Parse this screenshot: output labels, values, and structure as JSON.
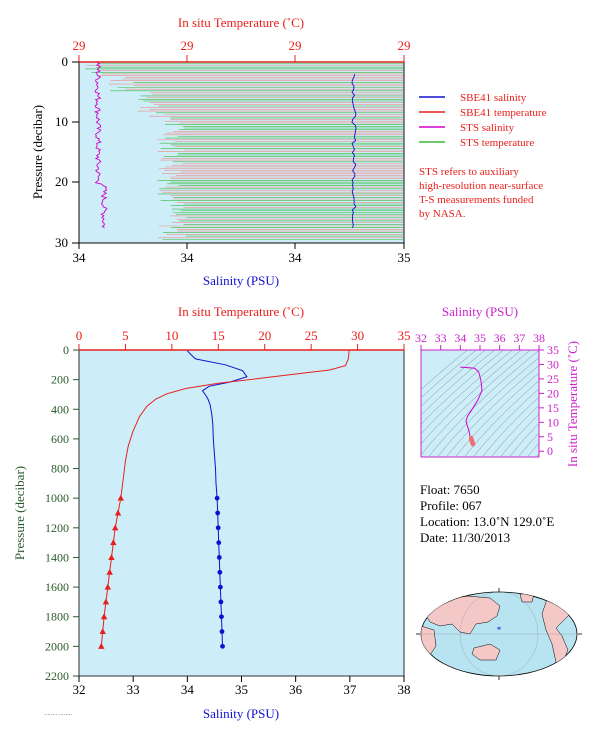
{
  "colors": {
    "plot_bg": "#cdeef8",
    "temperature": "#e8201c",
    "salinity": "#1010d0",
    "sts_salinity": "#d000d0",
    "sts_temperature": "#3cb83c",
    "inset_axis": "#cc22cc",
    "pressure_axis": "#2a5a2a"
  },
  "top_chart": {
    "top_axis_title": "In situ Temperature (˚C)",
    "top_ticks": [
      "29",
      "29",
      "29",
      "29"
    ],
    "left_axis_title": "Pressure (decibar)",
    "left_ticks": [
      "0",
      "10",
      "20",
      "30"
    ],
    "bottom_axis_title": "Salinity (PSU)",
    "bottom_ticks": [
      "34",
      "34",
      "34",
      "35"
    ],
    "legend": [
      {
        "label": "SBE41 salinity",
        "color": "#1010d0"
      },
      {
        "label": "SBE41 temperature",
        "color": "#e8201c"
      },
      {
        "label": "STS salinity",
        "color": "#d000d0"
      },
      {
        "label": "STS temperature",
        "color": "#3cb83c"
      }
    ],
    "note_lines": [
      "STS refers to auxiliary",
      "high-resolution near-surface",
      "T-S measurements funded",
      "by NASA."
    ]
  },
  "main_chart": {
    "top_axis_title": "In situ Temperature (˚C)",
    "top_ticks": [
      "0",
      "5",
      "10",
      "15",
      "20",
      "25",
      "30",
      "35"
    ],
    "left_axis_title": "Pressure (decibar)",
    "left_ticks": [
      "0",
      "200",
      "400",
      "600",
      "800",
      "1000",
      "1200",
      "1400",
      "1600",
      "1800",
      "2000",
      "2200"
    ],
    "bottom_axis_title": "Salinity (PSU)",
    "bottom_ticks": [
      "32",
      "33",
      "34",
      "35",
      "36",
      "37",
      "38"
    ]
  },
  "inset_chart": {
    "top_axis_title": "Salinity (PSU)",
    "top_ticks": [
      "32",
      "33",
      "34",
      "35",
      "36",
      "37",
      "38"
    ],
    "right_axis_title": "In situ Temperature (˚C)",
    "right_ticks": [
      "0",
      "5",
      "10",
      "15",
      "20",
      "25",
      "30",
      "35"
    ]
  },
  "float_info": {
    "float": "Float:  7650",
    "profile": "Profile:  067",
    "location": "Location:  13.0˚N  129.0˚E",
    "date": "Date:  11/30/2013"
  },
  "chart_data": [
    {
      "type": "line",
      "title": "",
      "xlabel": "Salinity (PSU)",
      "ylabel": "Pressure (decibar)",
      "x2label": "In situ Temperature (˚C)",
      "xlim": [
        32,
        38
      ],
      "x2lim": [
        0,
        35
      ],
      "ylim": [
        2200,
        0
      ],
      "grid": false,
      "series": [
        {
          "name": "Salinity",
          "axis": "salinity",
          "values": [
            [
              34.0,
              5
            ],
            [
              34.05,
              25
            ],
            [
              34.15,
              60
            ],
            [
              34.7,
              100
            ],
            [
              35.02,
              140
            ],
            [
              35.1,
              180
            ],
            [
              34.8,
              215
            ],
            [
              34.4,
              245
            ],
            [
              34.28,
              275
            ],
            [
              34.33,
              300
            ],
            [
              34.38,
              330
            ],
            [
              34.42,
              370
            ],
            [
              34.45,
              430
            ],
            [
              34.47,
              500
            ],
            [
              34.48,
              600
            ],
            [
              34.5,
              700
            ],
            [
              34.52,
              800
            ],
            [
              34.53,
              900
            ],
            [
              34.55,
              1000
            ],
            [
              34.56,
              1100
            ],
            [
              34.57,
              1200
            ],
            [
              34.58,
              1300
            ],
            [
              34.59,
              1400
            ],
            [
              34.6,
              1500
            ],
            [
              34.61,
              1600
            ],
            [
              34.62,
              1700
            ],
            [
              34.63,
              1800
            ],
            [
              34.64,
              1900
            ],
            [
              34.65,
              2000
            ]
          ],
          "marked_from_pressure": 1000
        },
        {
          "name": "Temperature",
          "axis": "temperature",
          "values": [
            [
              29.1,
              5
            ],
            [
              29.0,
              60
            ],
            [
              28.7,
              105
            ],
            [
              27.0,
              135
            ],
            [
              23.0,
              165
            ],
            [
              19.0,
              195
            ],
            [
              15.0,
              225
            ],
            [
              11.5,
              260
            ],
            [
              9.5,
              295
            ],
            [
              8.3,
              330
            ],
            [
              7.3,
              380
            ],
            [
              6.5,
              450
            ],
            [
              5.8,
              550
            ],
            [
              5.3,
              650
            ],
            [
              5.0,
              750
            ],
            [
              4.8,
              850
            ],
            [
              4.6,
              950
            ],
            [
              4.5,
              1000
            ],
            [
              4.2,
              1100
            ],
            [
              3.9,
              1200
            ],
            [
              3.7,
              1300
            ],
            [
              3.5,
              1400
            ],
            [
              3.3,
              1500
            ],
            [
              3.1,
              1600
            ],
            [
              2.9,
              1700
            ],
            [
              2.7,
              1800
            ],
            [
              2.55,
              1900
            ],
            [
              2.4,
              2000
            ]
          ],
          "marked_from_pressure": 1000
        }
      ]
    }
  ]
}
